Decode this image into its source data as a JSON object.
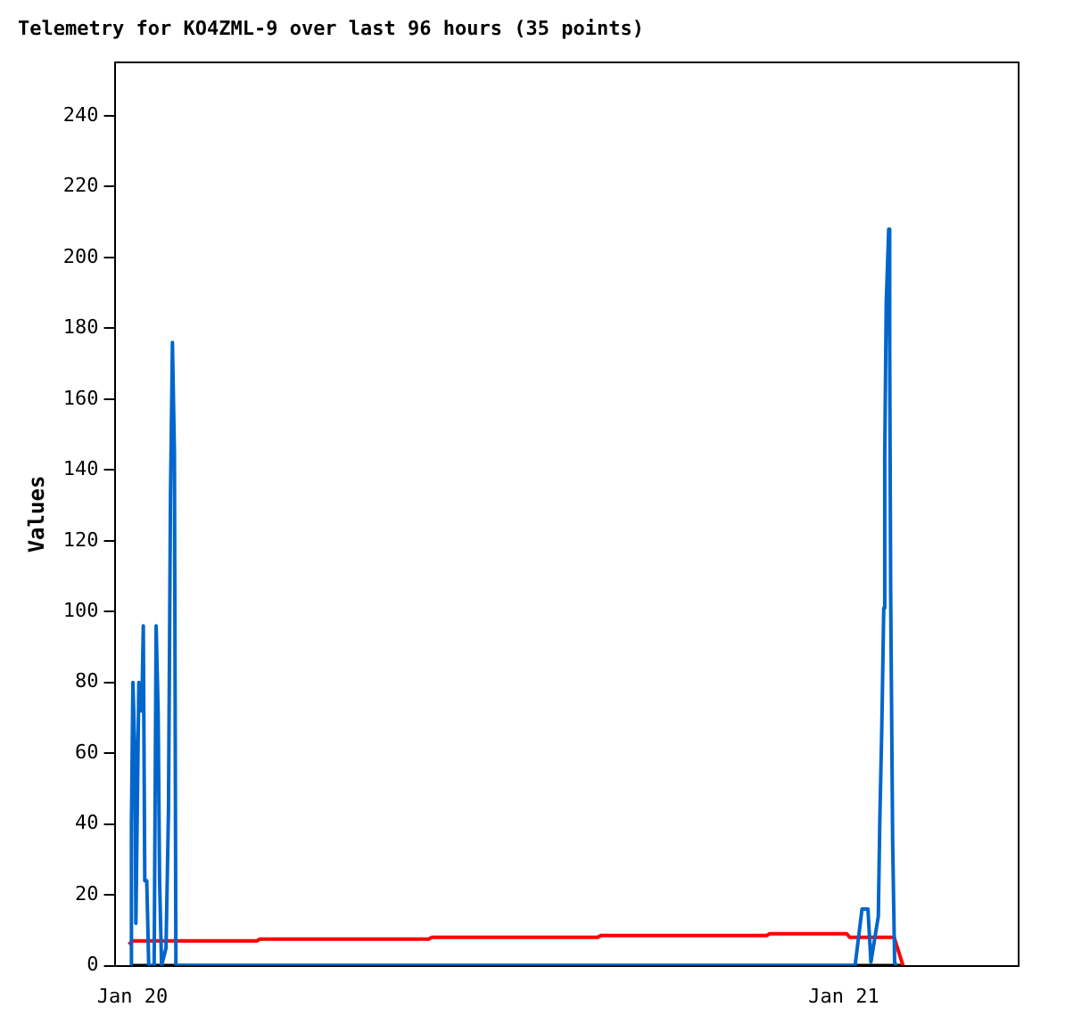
{
  "chart_data": {
    "type": "line",
    "title": "Telemetry for KO4ZML-9 over last 96 hours (35 points)",
    "ylabel": "Values",
    "xlim": [
      "--01-19T23:24",
      "--01-21T05:54"
    ],
    "xticks": [
      {
        "value": "--01-20",
        "label": "Jan 20"
      },
      {
        "value": "--01-21",
        "label": "Jan 21"
      }
    ],
    "ylim": [
      0,
      255
    ],
    "yticks": [
      0,
      20,
      40,
      60,
      80,
      100,
      120,
      140,
      160,
      180,
      200,
      220,
      240
    ],
    "grid": false,
    "legend": false,
    "marker": "none",
    "line_style": "solid",
    "series": [
      {
        "color": "#0066cc",
        "x": [
          "--01-19T23:56",
          "--01-19T23:58",
          "--01-20T00:01",
          "--01-20T00:05",
          "--01-20T00:07",
          "--01-20T00:13",
          "--01-20T00:16",
          "--01-20T00:19",
          "--01-20T00:22",
          "--01-20T00:25",
          "--01-20T00:29",
          "--01-20T00:33",
          "--01-20T00:44",
          "--01-20T00:48",
          "--01-20T00:52",
          "--01-20T00:55",
          "--01-20T00:59",
          "--01-20T01:08",
          "--01-20T01:13",
          "--01-20T01:17",
          "--01-20T01:21",
          "--01-20T01:25",
          "--01-20T01:28",
          "--01-21T00:23",
          "--01-21T00:37",
          "--01-21T00:49",
          "--01-21T00:55",
          "--01-21T01:10",
          "--01-21T01:13",
          "--01-21T01:17",
          "--01-21T01:21",
          "--01-21T01:23",
          "--01-21T01:26",
          "--01-21T01:31",
          "--01-21T01:33",
          "--01-21T01:35",
          "--01-21T01:39",
          "--01-21T01:43",
          "--01-21T01:46"
        ],
        "values": [
          0,
          40,
          80,
          60,
          12,
          80,
          72,
          72,
          96,
          24,
          24,
          0,
          0,
          96,
          72,
          24,
          0,
          5,
          44,
          132,
          176,
          145,
          0,
          0,
          16,
          16,
          1,
          14,
          41,
          67,
          101,
          144,
          187,
          208,
          174,
          105,
          35,
          1,
          0
        ]
      },
      {
        "color": "#ff0000",
        "x": [
          "--01-19T23:53",
          "--01-20T00:00",
          "--01-20T04:12",
          "--01-20T04:18",
          "--01-20T10:00",
          "--01-20T10:06",
          "--01-20T15:42",
          "--01-20T15:48",
          "--01-20T21:24",
          "--01-20T21:30",
          "--01-21T00:06",
          "--01-21T00:12",
          "--01-21T01:42",
          "--01-21T02:00"
        ],
        "values": [
          6,
          7,
          7,
          7.5,
          7.5,
          8,
          8,
          8.5,
          8.5,
          9,
          9,
          8,
          8,
          0
        ]
      },
      {
        "color": "#000000",
        "x": [
          "--01-20T00:00",
          "--01-21T02:00"
        ],
        "values": [
          0,
          0
        ]
      }
    ]
  }
}
